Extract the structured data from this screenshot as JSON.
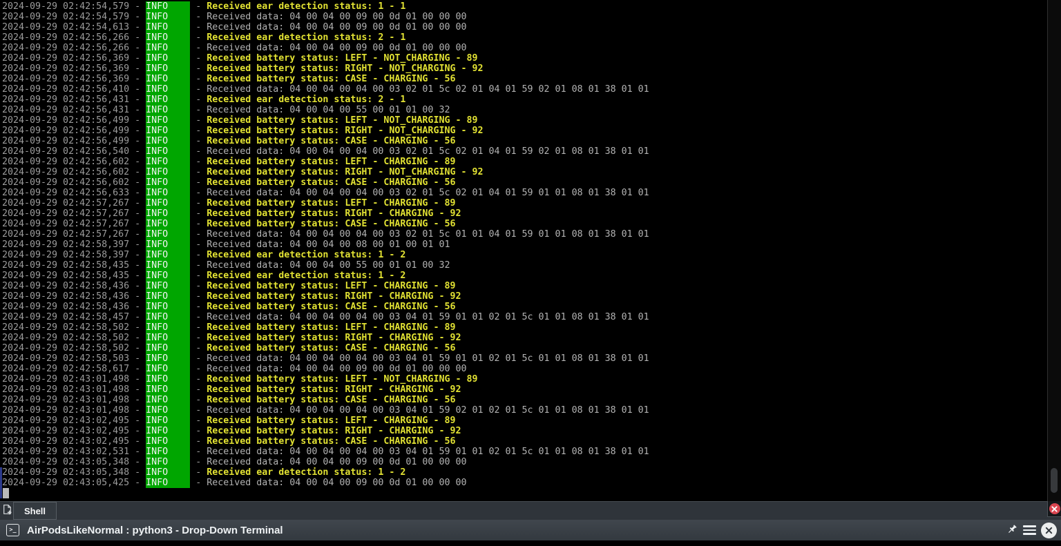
{
  "window": {
    "title_bar": {
      "app_icon": "terminal-icon",
      "app_icon_glyph": ">_",
      "title": "AirPodsLikeNormal : python3 - Drop-Down Terminal",
      "action_icons": [
        "pin-icon",
        "hamburger-menu-icon",
        "close-circle-icon"
      ]
    },
    "tab_bar": {
      "new_tab_icon": "new-tab-document-plus-icon",
      "tabs": [
        {
          "label": "Shell",
          "active": true
        }
      ],
      "close_session_icon": "red-close-x-icon"
    },
    "colors": {
      "accent_red": "#da4550",
      "tabbar_bg": "#2f343a"
    }
  },
  "terminal": {
    "level": "INFO",
    "separator": " - ",
    "cursor": "block",
    "scrollbar": {
      "thumb_visible": true,
      "position": "bottom"
    },
    "colors": {
      "background": "#000000",
      "timestamp": "#9c9c9c",
      "data_text": "#b3b3b3",
      "highlight_text": "#e2e233",
      "level_bg": "#00a600",
      "level_text": "#f4f4f4",
      "marker_blue": "#2c3a8c"
    },
    "lines": [
      {
        "time": "2024-09-29 02:42:54,579",
        "message": "Received ear detection status: 1 - 1",
        "style": "highlight"
      },
      {
        "time": "2024-09-29 02:42:54,579",
        "message": "Received data: 04 00 04 00 09 00 0d 01 00 00 00",
        "style": "data"
      },
      {
        "time": "2024-09-29 02:42:54,613",
        "message": "Received data: 04 00 04 00 09 00 0d 01 00 00 00",
        "style": "data"
      },
      {
        "time": "2024-09-29 02:42:56,266",
        "message": "Received ear detection status: 2 - 1",
        "style": "highlight"
      },
      {
        "time": "2024-09-29 02:42:56,266",
        "message": "Received data: 04 00 04 00 09 00 0d 01 00 00 00",
        "style": "data"
      },
      {
        "time": "2024-09-29 02:42:56,369",
        "message": "Received battery status: LEFT - NOT_CHARGING - 89",
        "style": "highlight"
      },
      {
        "time": "2024-09-29 02:42:56,369",
        "message": "Received battery status: RIGHT - NOT_CHARGING - 92",
        "style": "highlight"
      },
      {
        "time": "2024-09-29 02:42:56,369",
        "message": "Received battery status: CASE - CHARGING - 56",
        "style": "highlight"
      },
      {
        "time": "2024-09-29 02:42:56,410",
        "message": "Received data: 04 00 04 00 04 00 03 02 01 5c 02 01 04 01 59 02 01 08 01 38 01 01",
        "style": "data"
      },
      {
        "time": "2024-09-29 02:42:56,431",
        "message": "Received ear detection status: 2 - 1",
        "style": "highlight"
      },
      {
        "time": "2024-09-29 02:42:56,431",
        "message": "Received data: 04 00 04 00 55 00 01 01 00 32",
        "style": "data"
      },
      {
        "time": "2024-09-29 02:42:56,499",
        "message": "Received battery status: LEFT - NOT_CHARGING - 89",
        "style": "highlight"
      },
      {
        "time": "2024-09-29 02:42:56,499",
        "message": "Received battery status: RIGHT - NOT_CHARGING - 92",
        "style": "highlight"
      },
      {
        "time": "2024-09-29 02:42:56,499",
        "message": "Received battery status: CASE - CHARGING - 56",
        "style": "highlight"
      },
      {
        "time": "2024-09-29 02:42:56,540",
        "message": "Received data: 04 00 04 00 04 00 03 02 01 5c 02 01 04 01 59 02 01 08 01 38 01 01",
        "style": "data"
      },
      {
        "time": "2024-09-29 02:42:56,602",
        "message": "Received battery status: LEFT - CHARGING - 89",
        "style": "highlight"
      },
      {
        "time": "2024-09-29 02:42:56,602",
        "message": "Received battery status: RIGHT - NOT_CHARGING - 92",
        "style": "highlight"
      },
      {
        "time": "2024-09-29 02:42:56,602",
        "message": "Received battery status: CASE - CHARGING - 56",
        "style": "highlight"
      },
      {
        "time": "2024-09-29 02:42:56,633",
        "message": "Received data: 04 00 04 00 04 00 03 02 01 5c 02 01 04 01 59 01 01 08 01 38 01 01",
        "style": "data"
      },
      {
        "time": "2024-09-29 02:42:57,267",
        "message": "Received battery status: LEFT - CHARGING - 89",
        "style": "highlight"
      },
      {
        "time": "2024-09-29 02:42:57,267",
        "message": "Received battery status: RIGHT - CHARGING - 92",
        "style": "highlight"
      },
      {
        "time": "2024-09-29 02:42:57,267",
        "message": "Received battery status: CASE - CHARGING - 56",
        "style": "highlight"
      },
      {
        "time": "2024-09-29 02:42:57,267",
        "message": "Received data: 04 00 04 00 04 00 03 02 01 5c 01 01 04 01 59 01 01 08 01 38 01 01",
        "style": "data"
      },
      {
        "time": "2024-09-29 02:42:58,397",
        "message": "Received data: 04 00 04 00 08 00 01 00 01 01",
        "style": "data"
      },
      {
        "time": "2024-09-29 02:42:58,397",
        "message": "Received ear detection status: 1 - 2",
        "style": "highlight"
      },
      {
        "time": "2024-09-29 02:42:58,435",
        "message": "Received data: 04 00 04 00 55 00 01 01 00 32",
        "style": "data"
      },
      {
        "time": "2024-09-29 02:42:58,435",
        "message": "Received ear detection status: 1 - 2",
        "style": "highlight"
      },
      {
        "time": "2024-09-29 02:42:58,436",
        "message": "Received battery status: LEFT - CHARGING - 89",
        "style": "highlight"
      },
      {
        "time": "2024-09-29 02:42:58,436",
        "message": "Received battery status: RIGHT - CHARGING - 92",
        "style": "highlight"
      },
      {
        "time": "2024-09-29 02:42:58,436",
        "message": "Received battery status: CASE - CHARGING - 56",
        "style": "highlight"
      },
      {
        "time": "2024-09-29 02:42:58,457",
        "message": "Received data: 04 00 04 00 04 00 03 04 01 59 01 01 02 01 5c 01 01 08 01 38 01 01",
        "style": "data"
      },
      {
        "time": "2024-09-29 02:42:58,502",
        "message": "Received battery status: LEFT - CHARGING - 89",
        "style": "highlight"
      },
      {
        "time": "2024-09-29 02:42:58,502",
        "message": "Received battery status: RIGHT - CHARGING - 92",
        "style": "highlight"
      },
      {
        "time": "2024-09-29 02:42:58,502",
        "message": "Received battery status: CASE - CHARGING - 56",
        "style": "highlight"
      },
      {
        "time": "2024-09-29 02:42:58,503",
        "message": "Received data: 04 00 04 00 04 00 03 04 01 59 01 01 02 01 5c 01 01 08 01 38 01 01",
        "style": "data"
      },
      {
        "time": "2024-09-29 02:42:58,617",
        "message": "Received data: 04 00 04 00 09 00 0d 01 00 00 00",
        "style": "data"
      },
      {
        "time": "2024-09-29 02:43:01,498",
        "message": "Received battery status: LEFT - NOT_CHARGING - 89",
        "style": "highlight"
      },
      {
        "time": "2024-09-29 02:43:01,498",
        "message": "Received battery status: RIGHT - CHARGING - 92",
        "style": "highlight"
      },
      {
        "time": "2024-09-29 02:43:01,498",
        "message": "Received battery status: CASE - CHARGING - 56",
        "style": "highlight"
      },
      {
        "time": "2024-09-29 02:43:01,498",
        "message": "Received data: 04 00 04 00 04 00 03 04 01 59 02 01 02 01 5c 01 01 08 01 38 01 01",
        "style": "data"
      },
      {
        "time": "2024-09-29 02:43:02,495",
        "message": "Received battery status: LEFT - CHARGING - 89",
        "style": "highlight"
      },
      {
        "time": "2024-09-29 02:43:02,495",
        "message": "Received battery status: RIGHT - CHARGING - 92",
        "style": "highlight"
      },
      {
        "time": "2024-09-29 02:43:02,495",
        "message": "Received battery status: CASE - CHARGING - 56",
        "style": "highlight"
      },
      {
        "time": "2024-09-29 02:43:02,531",
        "message": "Received data: 04 00 04 00 04 00 03 04 01 59 01 01 02 01 5c 01 01 08 01 38 01 01",
        "style": "data"
      },
      {
        "time": "2024-09-29 02:43:05,348",
        "message": "Received data: 04 00 04 00 09 00 0d 01 00 00 00",
        "style": "data"
      },
      {
        "time": "2024-09-29 02:43:05,348",
        "message": "Received ear detection status: 1 - 2",
        "style": "highlight",
        "marked": true
      },
      {
        "time": "2024-09-29 02:43:05,425",
        "message": "Received data: 04 00 04 00 09 00 0d 01 00 00 00",
        "style": "data",
        "marked": true
      }
    ]
  }
}
